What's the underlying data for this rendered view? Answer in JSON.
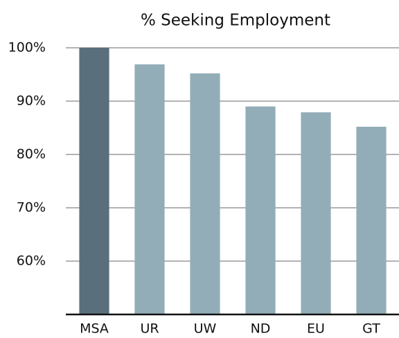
{
  "chart_data": {
    "type": "bar",
    "title": "% Seeking Employment",
    "categories": [
      "MSA",
      "UR",
      "UW",
      "ND",
      "EU",
      "GT"
    ],
    "values": [
      100,
      96.9,
      95.2,
      89.0,
      87.9,
      85.2
    ],
    "colors": [
      "#5a6f7c",
      "#93adb8",
      "#93adb8",
      "#93adb8",
      "#93adb8",
      "#93adb8"
    ],
    "ylim": [
      50,
      100
    ],
    "yticks": [
      {
        "value": 60,
        "label": "60%"
      },
      {
        "value": 70,
        "label": "70%"
      },
      {
        "value": 80,
        "label": "80%"
      },
      {
        "value": 90,
        "label": "90%"
      },
      {
        "value": 100,
        "label": "100%"
      }
    ],
    "grid": true
  }
}
